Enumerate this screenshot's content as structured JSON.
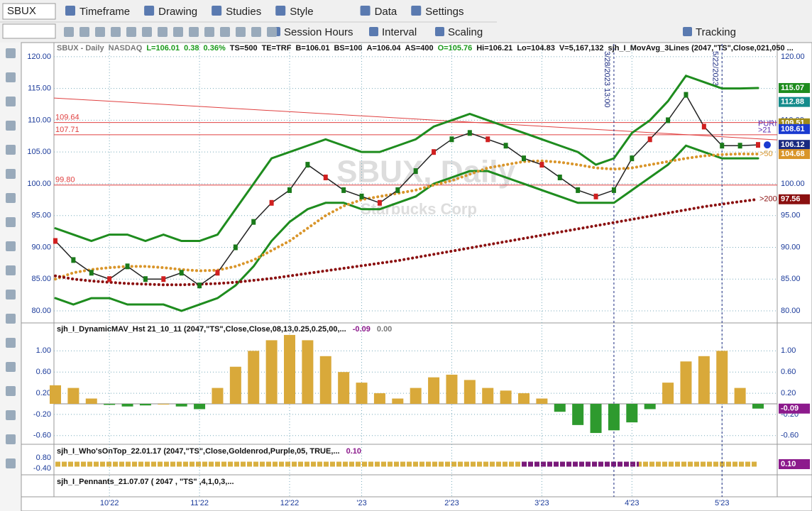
{
  "toolbar": {
    "symbol": "SBUX",
    "menus": [
      "Timeframe",
      "Drawing",
      "Studies",
      "Style",
      "Data",
      "Settings"
    ],
    "row2": [
      "Session Hours",
      "Interval",
      "Scaling",
      "Tracking"
    ]
  },
  "header": {
    "items": [
      "SBUX - Daily",
      "NASDAQ",
      "L=106.01",
      "0.38",
      "0.36%",
      "TS=500",
      "TE=TRF",
      "B=106.01",
      "BS=100",
      "A=106.04",
      "AS=400",
      "O=105.76",
      "Hi=106.21",
      "Lo=104.83",
      "V=5,167,132",
      "sjh_I_MovAvg_3Lines (2047,\"TS\",Close,021,050 ..."
    ],
    "colors": [
      "#777",
      "#777",
      "#1a9a1a",
      "#1a9a1a",
      "#1a9a1a",
      "#111",
      "#111",
      "#111",
      "#111",
      "#111",
      "#111",
      "#1a9a1a",
      "#111",
      "#111",
      "#111",
      "#111"
    ]
  },
  "watermark": [
    "SBUX, Daily",
    "Starbucks Corp"
  ],
  "panels": {
    "p2": {
      "title": "sjh_I_DynamicMAV_Hst 21_10_11 (2047,\"TS\",Close,Close,08,13,0.25,0.25,00,...",
      "v1": "-0.09",
      "v2": "0.00"
    },
    "p3": {
      "title": "sjh_I_Who'sOnTop_22.01.17 (2047,\"TS\",Close,Goldenrod,Purple,05, TRUE,...",
      "v1": "0.10",
      "ticks": [
        "0.80",
        "-0.40"
      ],
      "tag": "0.10"
    },
    "p4": {
      "title": "sjh_I_Pennants_21.07.07 ( 2047 , \"TS\" ,4,1,0,3,..."
    }
  },
  "chart_data": [
    {
      "type": "line",
      "categories": [
        null,
        null,
        null,
        "10'22",
        null,
        null,
        null,
        null,
        "11'22",
        null,
        null,
        null,
        null,
        "12'22",
        null,
        null,
        null,
        "'23",
        null,
        null,
        null,
        null,
        "2'23",
        null,
        null,
        null,
        null,
        "3'23",
        null,
        null,
        null,
        null,
        "4'23",
        null,
        null,
        null,
        null,
        "5'23",
        null,
        null
      ],
      "ylim": [
        78.1,
        122.0
      ],
      "yticks": [
        {
          "value": 120,
          "label": "120.00"
        },
        {
          "value": 115,
          "label": "115.00"
        },
        {
          "value": 110,
          "label": "110.00"
        },
        {
          "value": 105,
          "label": "105.00"
        },
        {
          "value": 100,
          "label": "100.00"
        },
        {
          "value": 95,
          "label": "95.00"
        },
        {
          "value": 90,
          "label": "90.00"
        },
        {
          "value": 85,
          "label": "85.00"
        },
        {
          "value": 80,
          "label": "80.00"
        }
      ],
      "grid": true,
      "series": [
        {
          "color": "#1e8c1e",
          "values": [
            93,
            92,
            91,
            92,
            92,
            91,
            92,
            91,
            91,
            92,
            96,
            100,
            104,
            105,
            106,
            107,
            106,
            105,
            105,
            106,
            107,
            109,
            110,
            111,
            110,
            109,
            108,
            107,
            106,
            105,
            103,
            104,
            108,
            110,
            113,
            117,
            116,
            115,
            115,
            115.07
          ]
        },
        {
          "color": "#1e8c1e",
          "values": [
            82,
            81,
            82,
            82,
            81,
            81,
            81,
            80,
            81,
            82,
            84,
            87,
            91,
            94,
            96,
            97,
            97,
            96,
            96,
            97,
            98,
            100,
            101,
            102,
            102,
            101,
            100,
            99,
            98,
            97,
            97,
            97,
            99,
            101,
            103,
            106,
            105,
            104,
            104,
            104
          ]
        },
        {
          "name": ">50",
          "color": "#d9952a",
          "values": [
            85,
            86,
            86.5,
            86.8,
            87,
            87,
            86.8,
            86.5,
            86.3,
            86.4,
            87,
            88,
            89.5,
            91,
            93,
            95,
            96.5,
            97.5,
            98,
            98.5,
            99,
            99.8,
            100.5,
            101.5,
            102.5,
            103,
            103.5,
            103.6,
            103.4,
            103,
            102.5,
            102.3,
            102.5,
            103,
            103.5,
            104,
            104.4,
            104.6,
            104.7,
            104.68
          ]
        },
        {
          "name": ">200",
          "color": "#8b1010",
          "values": [
            85.5,
            85,
            84.7,
            84.5,
            84.3,
            84.2,
            84.1,
            84.1,
            84.2,
            84.3,
            84.5,
            84.8,
            85.1,
            85.5,
            85.9,
            86.3,
            86.7,
            87.1,
            87.5,
            87.9,
            88.4,
            88.9,
            89.4,
            89.9,
            90.4,
            90.9,
            91.4,
            91.9,
            92.4,
            92.9,
            93.4,
            93.9,
            94.4,
            94.9,
            95.4,
            95.9,
            96.4,
            96.8,
            97.2,
            97.56
          ]
        },
        {
          "color": "#222222",
          "values": [
            91,
            88,
            86,
            85,
            87,
            85,
            85,
            86,
            84,
            86,
            90,
            94,
            97,
            99,
            103,
            101,
            99,
            98,
            97,
            99,
            102,
            105,
            107,
            108,
            107,
            106,
            104,
            103,
            101,
            99,
            98,
            99,
            104,
            107,
            110,
            114,
            109,
            106,
            106,
            106.12
          ]
        }
      ],
      "levels": [
        109.64,
        107.71,
        {
          "value": 99.8,
          "label": "99.80"
        }
      ],
      "trendline": [
        113.5,
        106.9
      ],
      "tags": [
        {
          "value": 115.07,
          "color": "#1e8c1e"
        },
        {
          "value": 112.88,
          "color": "#148c8c"
        },
        {
          "value": 109.51,
          "color": "#a08a1a"
        },
        {
          "value": 108.61,
          "color": "#1a3ad0"
        },
        {
          "value": 106.12,
          "color": "#1a2a80"
        },
        {
          "value": 104.68,
          "color": "#d9952a"
        },
        {
          "value": 97.56,
          "color": "#8b1010"
        }
      ],
      "annotations": [
        {
          "text": "PURI",
          "value": 109.4
        },
        {
          "text": ">21",
          "value": 108.4
        }
      ],
      "vlines": [
        {
          "text": "3/28/2023 13:00",
          "index": 31
        },
        {
          "text": "5/22/2023",
          "index": 37
        }
      ]
    },
    {
      "type": "bar",
      "values": [
        0.35,
        0.3,
        0.1,
        -0.02,
        -0.05,
        -0.03,
        0,
        -0.05,
        -0.1,
        0.3,
        0.7,
        1.0,
        1.2,
        1.3,
        1.2,
        0.9,
        0.6,
        0.4,
        0.2,
        0.1,
        0.3,
        0.5,
        0.55,
        0.45,
        0.3,
        0.25,
        0.2,
        0.1,
        -0.15,
        -0.4,
        -0.55,
        -0.5,
        -0.35,
        -0.1,
        0.4,
        0.8,
        0.9,
        1.0,
        0.3,
        -0.09
      ],
      "colors": {
        "positive": "#d9a93a",
        "negative": "#2e9a2e"
      },
      "ylim": [
        -0.75,
        1.5
      ],
      "yticks": [
        {
          "value": 1,
          "label": "1.00"
        },
        {
          "value": 0.6,
          "label": "0.60"
        },
        {
          "value": 0.2,
          "label": "0.20"
        },
        {
          "value": -0.2,
          "label": "-0.20"
        },
        {
          "value": -0.6,
          "label": "-0.60"
        }
      ],
      "tag": {
        "value": -0.09,
        "label": "-0.09",
        "color": "#8c1a8c"
      }
    }
  ]
}
